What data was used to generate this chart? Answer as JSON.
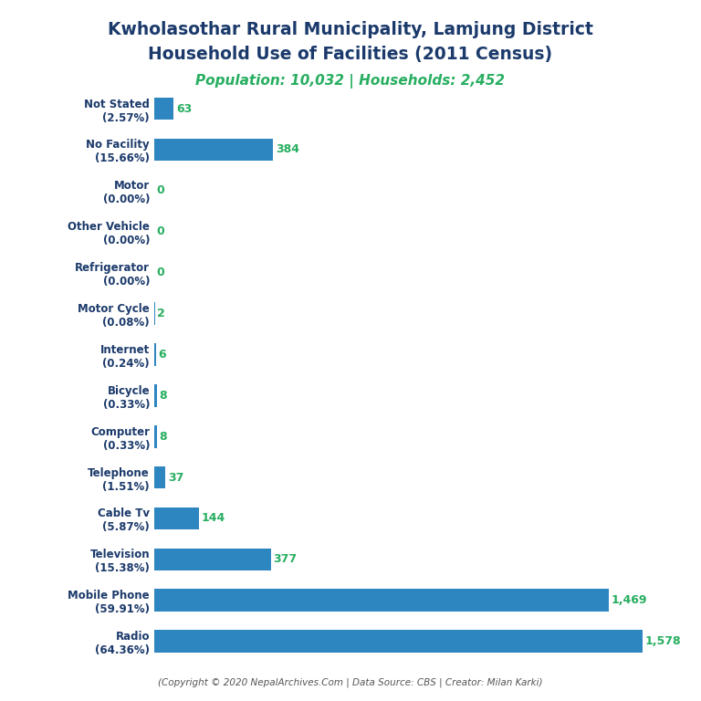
{
  "title_line1": "Kwholasothar Rural Municipality, Lamjung District",
  "title_line2": "Household Use of Facilities (2011 Census)",
  "subtitle": "Population: 10,032 | Households: 2,452",
  "categories": [
    "Radio\n(64.36%)",
    "Mobile Phone\n(59.91%)",
    "Television\n(15.38%)",
    "Cable Tv\n(5.87%)",
    "Telephone\n(1.51%)",
    "Computer\n(0.33%)",
    "Bicycle\n(0.33%)",
    "Internet\n(0.24%)",
    "Motor Cycle\n(0.08%)",
    "Refrigerator\n(0.00%)",
    "Other Vehicle\n(0.00%)",
    "Motor\n(0.00%)",
    "No Facility\n(15.66%)",
    "Not Stated\n(2.57%)"
  ],
  "values": [
    1578,
    1469,
    377,
    144,
    37,
    8,
    8,
    6,
    2,
    0,
    0,
    0,
    384,
    63
  ],
  "bar_color": "#2E86C1",
  "value_color": "#27AE60",
  "title_color": "#1B3A6B",
  "subtitle_color": "#27AE60",
  "label_color": "#1B3A6B",
  "footer_text": "(Copyright © 2020 NepalArchives.Com | Data Source: CBS | Creator: Milan Karki)",
  "footer_color": "#555555",
  "background_color": "#FFFFFF",
  "xlim": [
    0,
    1700
  ]
}
